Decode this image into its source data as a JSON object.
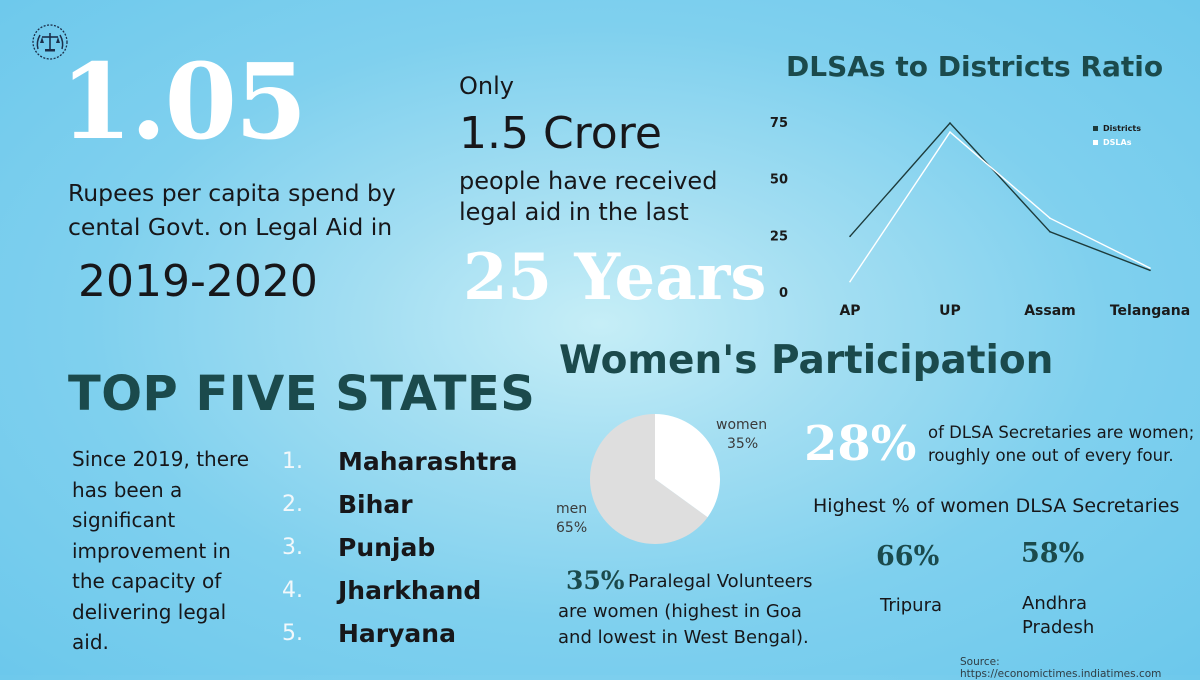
{
  "headline": {
    "big_number": "1.05",
    "description": "Rupees per capita spend by cental Govt. on Legal Aid in",
    "year": "2019-2020"
  },
  "legal_aid_reach": {
    "only": "Only",
    "amount": "1.5 Crore",
    "description": "people have received legal aid in the last",
    "period": "25 Years"
  },
  "chart_data": {
    "type": "line",
    "title": "DLSAs to Districts Ratio",
    "categories": [
      "AP",
      "UP",
      "Assam",
      "Telangana"
    ],
    "series": [
      {
        "name": "Districts",
        "values": [
          25,
          75,
          27,
          10
        ],
        "color": "#1d3b3b"
      },
      {
        "name": "DSLAs",
        "values": [
          5,
          71,
          33,
          11
        ],
        "color": "#ffffff"
      }
    ],
    "y_ticks": [
      0,
      25,
      50,
      75
    ],
    "ylim": [
      0,
      75
    ],
    "legend_position": "top-right",
    "grid": false
  },
  "top_states": {
    "title": "TOP FIVE STATES",
    "description": "Since 2019, there has been a  significant improvement in the capacity of delivering legal aid.",
    "states": [
      {
        "rank": "1.",
        "name": "Maharashtra"
      },
      {
        "rank": "2.",
        "name": "Bihar"
      },
      {
        "rank": "3.",
        "name": "Punjab"
      },
      {
        "rank": "4.",
        "name": "Jharkhand"
      },
      {
        "rank": "5.",
        "name": "Haryana"
      }
    ]
  },
  "women": {
    "title": "Women's Participation",
    "pie": {
      "women_label": "women",
      "women_pct_label": "35%",
      "women_pct": 35,
      "men_label": "men",
      "men_pct_label": "65%",
      "men_pct": 65,
      "women_color": "#ffffff",
      "men_color": "#dedede"
    },
    "secretaries_pct": "28%",
    "secretaries_text": "of DLSA Secretaries are women; roughly one out of every four.",
    "highest_title": "Highest % of women DLSA Secretaries",
    "highest": [
      {
        "pct": "66%",
        "state": "Tripura"
      },
      {
        "pct": "58%",
        "state": "Andhra Pradesh"
      }
    ],
    "paralegal_pct": "35%",
    "paralegal_line1": "Paralegal Volunteers",
    "paralegal_rest": "are women (highest in Goa and lowest in West Bengal)."
  },
  "source": "Source: https://economictimes.indiatimes.com",
  "logo_icon": "scales-of-justice-icon"
}
